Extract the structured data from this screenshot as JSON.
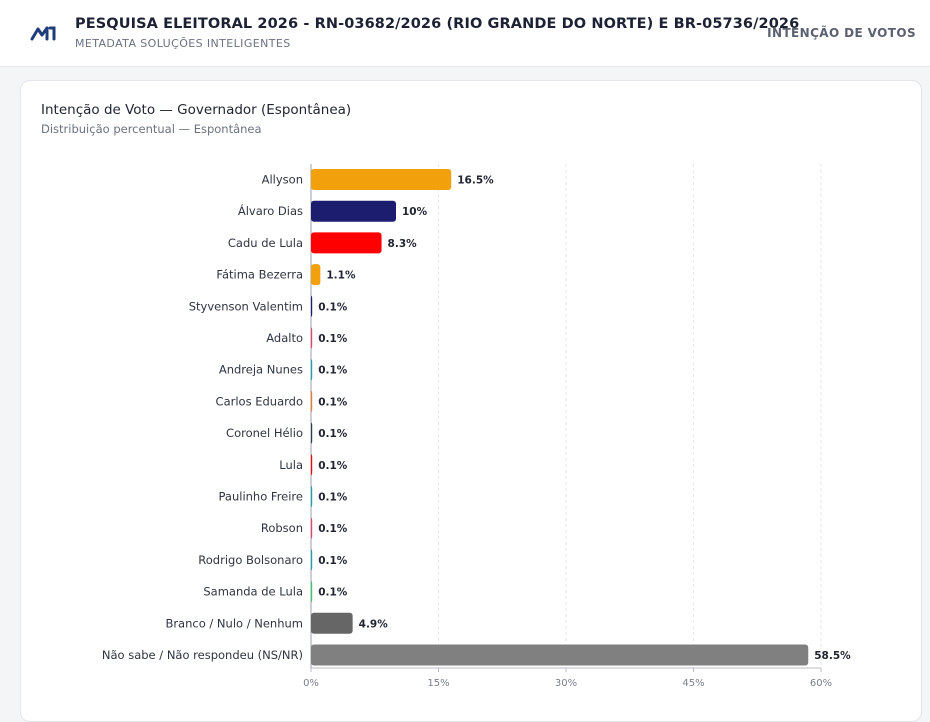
{
  "header": {
    "title": "PESQUISA ELEITORAL 2026 - RN-03682/2026 (RIO GRANDE DO NORTE) E BR-05736/2026",
    "subtitle": "METADATA SOLUÇÕES INTELIGENTES",
    "nav_link": "INTENÇÃO DE VOTOS",
    "logo_icon": "metadata-logo-icon"
  },
  "chart_data": {
    "type": "bar",
    "orientation": "horizontal",
    "title": "Intenção de Voto — Governador (Espontânea)",
    "subtitle": "Distribuição percentual — Espontânea",
    "categories": [
      "Allyson",
      "Álvaro Dias",
      "Cadu de Lula",
      "Fátima Bezerra",
      "Styvenson Valentim",
      "Adalto",
      "Andreja Nunes",
      "Carlos Eduardo",
      "Coronel Hélio",
      "Lula",
      "Paulinho Freire",
      "Robson",
      "Rodrigo Bolsonaro",
      "Samanda de Lula",
      "Branco / Nulo / Nenhum",
      "Não sabe / Não respondeu (NS/NR)"
    ],
    "values": [
      16.5,
      10,
      8.3,
      1.1,
      0.1,
      0.1,
      0.1,
      0.1,
      0.1,
      0.1,
      0.1,
      0.1,
      0.1,
      0.1,
      4.9,
      58.5
    ],
    "value_labels": [
      "16.5%",
      "10%",
      "8.3%",
      "1.1%",
      "0.1%",
      "0.1%",
      "0.1%",
      "0.1%",
      "0.1%",
      "0.1%",
      "0.1%",
      "0.1%",
      "0.1%",
      "0.1%",
      "4.9%",
      "58.5%"
    ],
    "colors": [
      "#f2a00c",
      "#1c1d6e",
      "#ff0000",
      "#f2a00c",
      "#1c1d6e",
      "#e8436b",
      "#1fa3a8",
      "#f07a22",
      "#2c3e50",
      "#ff0000",
      "#1fa3a8",
      "#e8436b",
      "#1fa3a8",
      "#3cc46a",
      "#666666",
      "#808080"
    ],
    "xlim": [
      0,
      60
    ],
    "xticks": [
      0,
      15,
      30,
      45,
      60
    ],
    "xtick_labels": [
      "0%",
      "15%",
      "30%",
      "45%",
      "60%"
    ],
    "grid": "vertical dashed",
    "legend": "none"
  }
}
